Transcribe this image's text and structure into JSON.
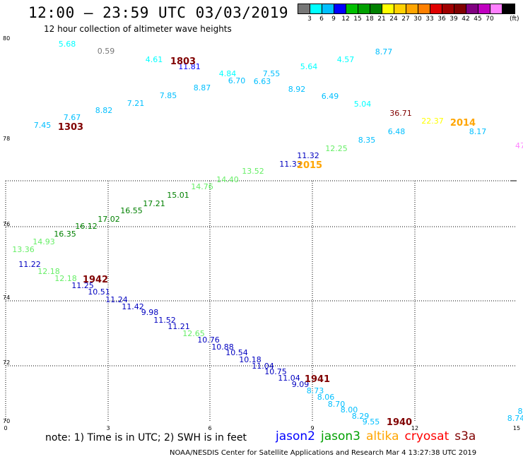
{
  "header": {
    "title": "12:00 — 23:59 UTC 03/03/2019",
    "subtitle": "12 hour collection of altimeter wave heights"
  },
  "colorbar": {
    "colors": [
      "#777777",
      "#00ffff",
      "#00bfff",
      "#0000ff",
      "#00c000",
      "#00a000",
      "#008000",
      "#ffff00",
      "#ffd000",
      "#ffa500",
      "#ff8000",
      "#e00000",
      "#a00000",
      "#800000",
      "#800080",
      "#c000c0",
      "#ff80ff",
      "#000000"
    ],
    "labels": [
      "3",
      "6",
      "9",
      "12",
      "15",
      "18",
      "21",
      "24",
      "27",
      "30",
      "33",
      "36",
      "39",
      "42",
      "45",
      "70"
    ],
    "unit": "(ft)"
  },
  "map": {
    "lat_labels": [
      "80",
      "78",
      "76",
      "74",
      "72",
      "70"
    ],
    "lon_labels": [
      "0",
      "3",
      "6",
      "9",
      "12",
      "15"
    ]
  },
  "readings": [
    {
      "v": "5.68",
      "c": "#00ffff"
    },
    {
      "v": "0.59",
      "c": "#777777"
    },
    {
      "v": "4.61",
      "c": "#00ffff"
    },
    {
      "v": "11.81",
      "c": "#0000ff"
    },
    {
      "v": "8.77",
      "c": "#00bfff"
    },
    {
      "v": "4.57",
      "c": "#00ffff"
    },
    {
      "v": "5.64",
      "c": "#00ffff"
    },
    {
      "v": "7.55",
      "c": "#00bfff"
    },
    {
      "v": "4.84",
      "c": "#00ffff"
    },
    {
      "v": "6.70",
      "c": "#00bfff"
    },
    {
      "v": "6.63",
      "c": "#00bfff"
    },
    {
      "v": "8.92",
      "c": "#00bfff"
    },
    {
      "v": "6.49",
      "c": "#00bfff"
    },
    {
      "v": "8.87",
      "c": "#00bfff"
    },
    {
      "v": "7.85",
      "c": "#00bfff"
    },
    {
      "v": "7.21",
      "c": "#00bfff"
    },
    {
      "v": "5.04",
      "c": "#00ffff"
    },
    {
      "v": "8.82",
      "c": "#00bfff"
    },
    {
      "v": "7.67",
      "c": "#00bfff"
    },
    {
      "v": "7.45",
      "c": "#00bfff"
    },
    {
      "v": "36.71",
      "c": "#800000"
    },
    {
      "v": "22.37",
      "c": "#ffff00"
    },
    {
      "v": "6.48",
      "c": "#00bfff"
    },
    {
      "v": "8.17",
      "c": "#00bfff"
    },
    {
      "v": "8.35",
      "c": "#00bfff"
    },
    {
      "v": "47",
      "c": "#ff80ff"
    },
    {
      "v": "12.25",
      "c": "#66ee66"
    },
    {
      "v": "11.32",
      "c": "#0000c0"
    },
    {
      "v": "11.33",
      "c": "#0000c0"
    },
    {
      "v": "13.52",
      "c": "#66ee66"
    },
    {
      "v": "14.40",
      "c": "#66ee66"
    },
    {
      "v": "14.76",
      "c": "#66ee66"
    },
    {
      "v": "15.01",
      "c": "#008000"
    },
    {
      "v": "17.21",
      "c": "#008000"
    },
    {
      "v": "16.55",
      "c": "#008000"
    },
    {
      "v": "17.02",
      "c": "#008000"
    },
    {
      "v": "16.12",
      "c": "#008000"
    },
    {
      "v": "16.35",
      "c": "#008000"
    },
    {
      "v": "14.93",
      "c": "#66ee66"
    },
    {
      "v": "13.36",
      "c": "#66ee66"
    },
    {
      "v": "11.22",
      "c": "#0000c0"
    },
    {
      "v": "12.18",
      "c": "#66ee66"
    },
    {
      "v": "12.18",
      "c": "#66ee66"
    },
    {
      "v": "11.25",
      "c": "#0000c0"
    },
    {
      "v": "10.51",
      "c": "#0000c0"
    },
    {
      "v": "11.24",
      "c": "#0000c0"
    },
    {
      "v": "11.42",
      "c": "#0000c0"
    },
    {
      "v": "9.98",
      "c": "#0000c0"
    },
    {
      "v": "11.52",
      "c": "#0000c0"
    },
    {
      "v": "11.21",
      "c": "#0000c0"
    },
    {
      "v": "12.65",
      "c": "#66ee66"
    },
    {
      "v": "10.76",
      "c": "#0000c0"
    },
    {
      "v": "10.88",
      "c": "#0000c0"
    },
    {
      "v": "10.54",
      "c": "#0000c0"
    },
    {
      "v": "10.18",
      "c": "#0000c0"
    },
    {
      "v": "11.04",
      "c": "#0000c0"
    },
    {
      "v": "10.75",
      "c": "#0000c0"
    },
    {
      "v": "11.04",
      "c": "#0000c0"
    },
    {
      "v": "9.09",
      "c": "#0000c0"
    },
    {
      "v": "8.73",
      "c": "#00bfff"
    },
    {
      "v": "8.06",
      "c": "#00bfff"
    },
    {
      "v": "8.70",
      "c": "#00bfff"
    },
    {
      "v": "8.00",
      "c": "#00bfff"
    },
    {
      "v": "8.29",
      "c": "#00bfff"
    },
    {
      "v": "9.55",
      "c": "#00bfff"
    },
    {
      "v": "8.74",
      "c": "#00bfff"
    },
    {
      "v": "8",
      "c": "#00bfff"
    }
  ],
  "passes": [
    {
      "v": "1803",
      "c": "#800000"
    },
    {
      "v": "1303",
      "c": "#800000"
    },
    {
      "v": "2014",
      "c": "#ffa500"
    },
    {
      "v": "2015",
      "c": "#ffa500"
    },
    {
      "v": "1942",
      "c": "#800000"
    },
    {
      "v": "1941",
      "c": "#800000"
    },
    {
      "v": "1940",
      "c": "#800000"
    }
  ],
  "footer": {
    "note": "note:  1) Time is in UTC;  2) SWH is in feet",
    "legend": [
      {
        "name": "jason2",
        "color": "#0000ff"
      },
      {
        "name": "jason3",
        "color": "#00a000"
      },
      {
        "name": "altika",
        "color": "#ffa500"
      },
      {
        "name": "cryosat",
        "color": "#ff0000"
      },
      {
        "name": "s3a",
        "color": "#800000"
      }
    ],
    "credit": "NOAA/NESDIS Center for Satellite Applications and Research    Mar  4 13:27:38 UTC 2019"
  }
}
